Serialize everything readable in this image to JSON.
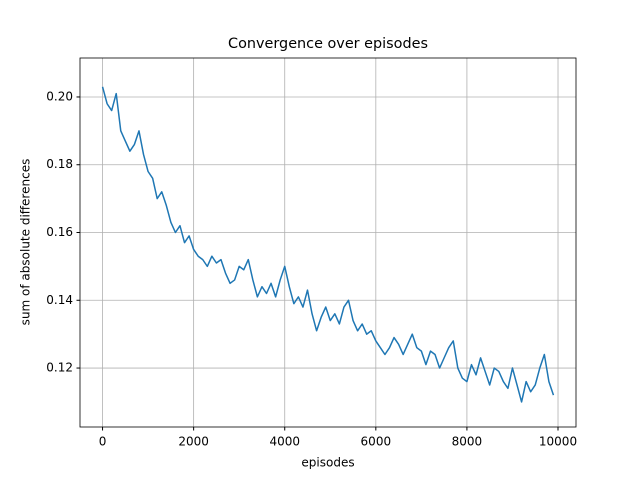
{
  "chart_data": {
    "type": "line",
    "title": "Convergence over episodes",
    "x_label": "episodes",
    "y_label": "sum of absolute differences",
    "x": [
      0,
      100,
      200,
      300,
      400,
      500,
      600,
      700,
      800,
      900,
      1000,
      1100,
      1200,
      1300,
      1400,
      1500,
      1600,
      1700,
      1800,
      1900,
      2000,
      2100,
      2200,
      2300,
      2400,
      2500,
      2600,
      2700,
      2800,
      2900,
      3000,
      3100,
      3200,
      3300,
      3400,
      3500,
      3600,
      3700,
      3800,
      3900,
      4000,
      4100,
      4200,
      4300,
      4400,
      4500,
      4600,
      4700,
      4800,
      4900,
      5000,
      5100,
      5200,
      5300,
      5400,
      5500,
      5600,
      5700,
      5800,
      5900,
      6000,
      6100,
      6200,
      6300,
      6400,
      6500,
      6600,
      6700,
      6800,
      6900,
      7000,
      7100,
      7200,
      7300,
      7400,
      7500,
      7600,
      7700,
      7800,
      7900,
      8000,
      8100,
      8200,
      8300,
      8400,
      8500,
      8600,
      8700,
      8800,
      8900,
      9000,
      9100,
      9200,
      9300,
      9400,
      9500,
      9600,
      9700,
      9800,
      9900
    ],
    "series": [
      {
        "color": "#1f77b4",
        "values": [
          0.203,
          0.198,
          0.196,
          0.201,
          0.19,
          0.187,
          0.184,
          0.186,
          0.19,
          0.183,
          0.178,
          0.176,
          0.17,
          0.172,
          0.168,
          0.163,
          0.16,
          0.162,
          0.157,
          0.159,
          0.155,
          0.153,
          0.152,
          0.15,
          0.153,
          0.151,
          0.152,
          0.148,
          0.145,
          0.146,
          0.15,
          0.149,
          0.152,
          0.146,
          0.141,
          0.144,
          0.142,
          0.145,
          0.141,
          0.146,
          0.15,
          0.144,
          0.139,
          0.141,
          0.138,
          0.143,
          0.136,
          0.131,
          0.135,
          0.138,
          0.134,
          0.136,
          0.133,
          0.138,
          0.14,
          0.134,
          0.131,
          0.133,
          0.13,
          0.131,
          0.128,
          0.126,
          0.124,
          0.126,
          0.129,
          0.127,
          0.124,
          0.127,
          0.13,
          0.126,
          0.125,
          0.121,
          0.125,
          0.124,
          0.12,
          0.123,
          0.126,
          0.128,
          0.12,
          0.117,
          0.116,
          0.121,
          0.118,
          0.123,
          0.119,
          0.115,
          0.12,
          0.119,
          0.116,
          0.114,
          0.12,
          0.115,
          0.11,
          0.116,
          0.113,
          0.115,
          0.12,
          0.124,
          0.116,
          0.112
        ]
      }
    ],
    "xlim": [
      -495,
      10395
    ],
    "ylim": [
      0.1026,
      0.2115
    ],
    "xticks": [
      0,
      2000,
      4000,
      6000,
      8000,
      10000
    ],
    "yticks": [
      0.12,
      0.14,
      0.16,
      0.18,
      {
        "value": 0.2,
        "label": "0.20"
      }
    ],
    "grid": true
  }
}
